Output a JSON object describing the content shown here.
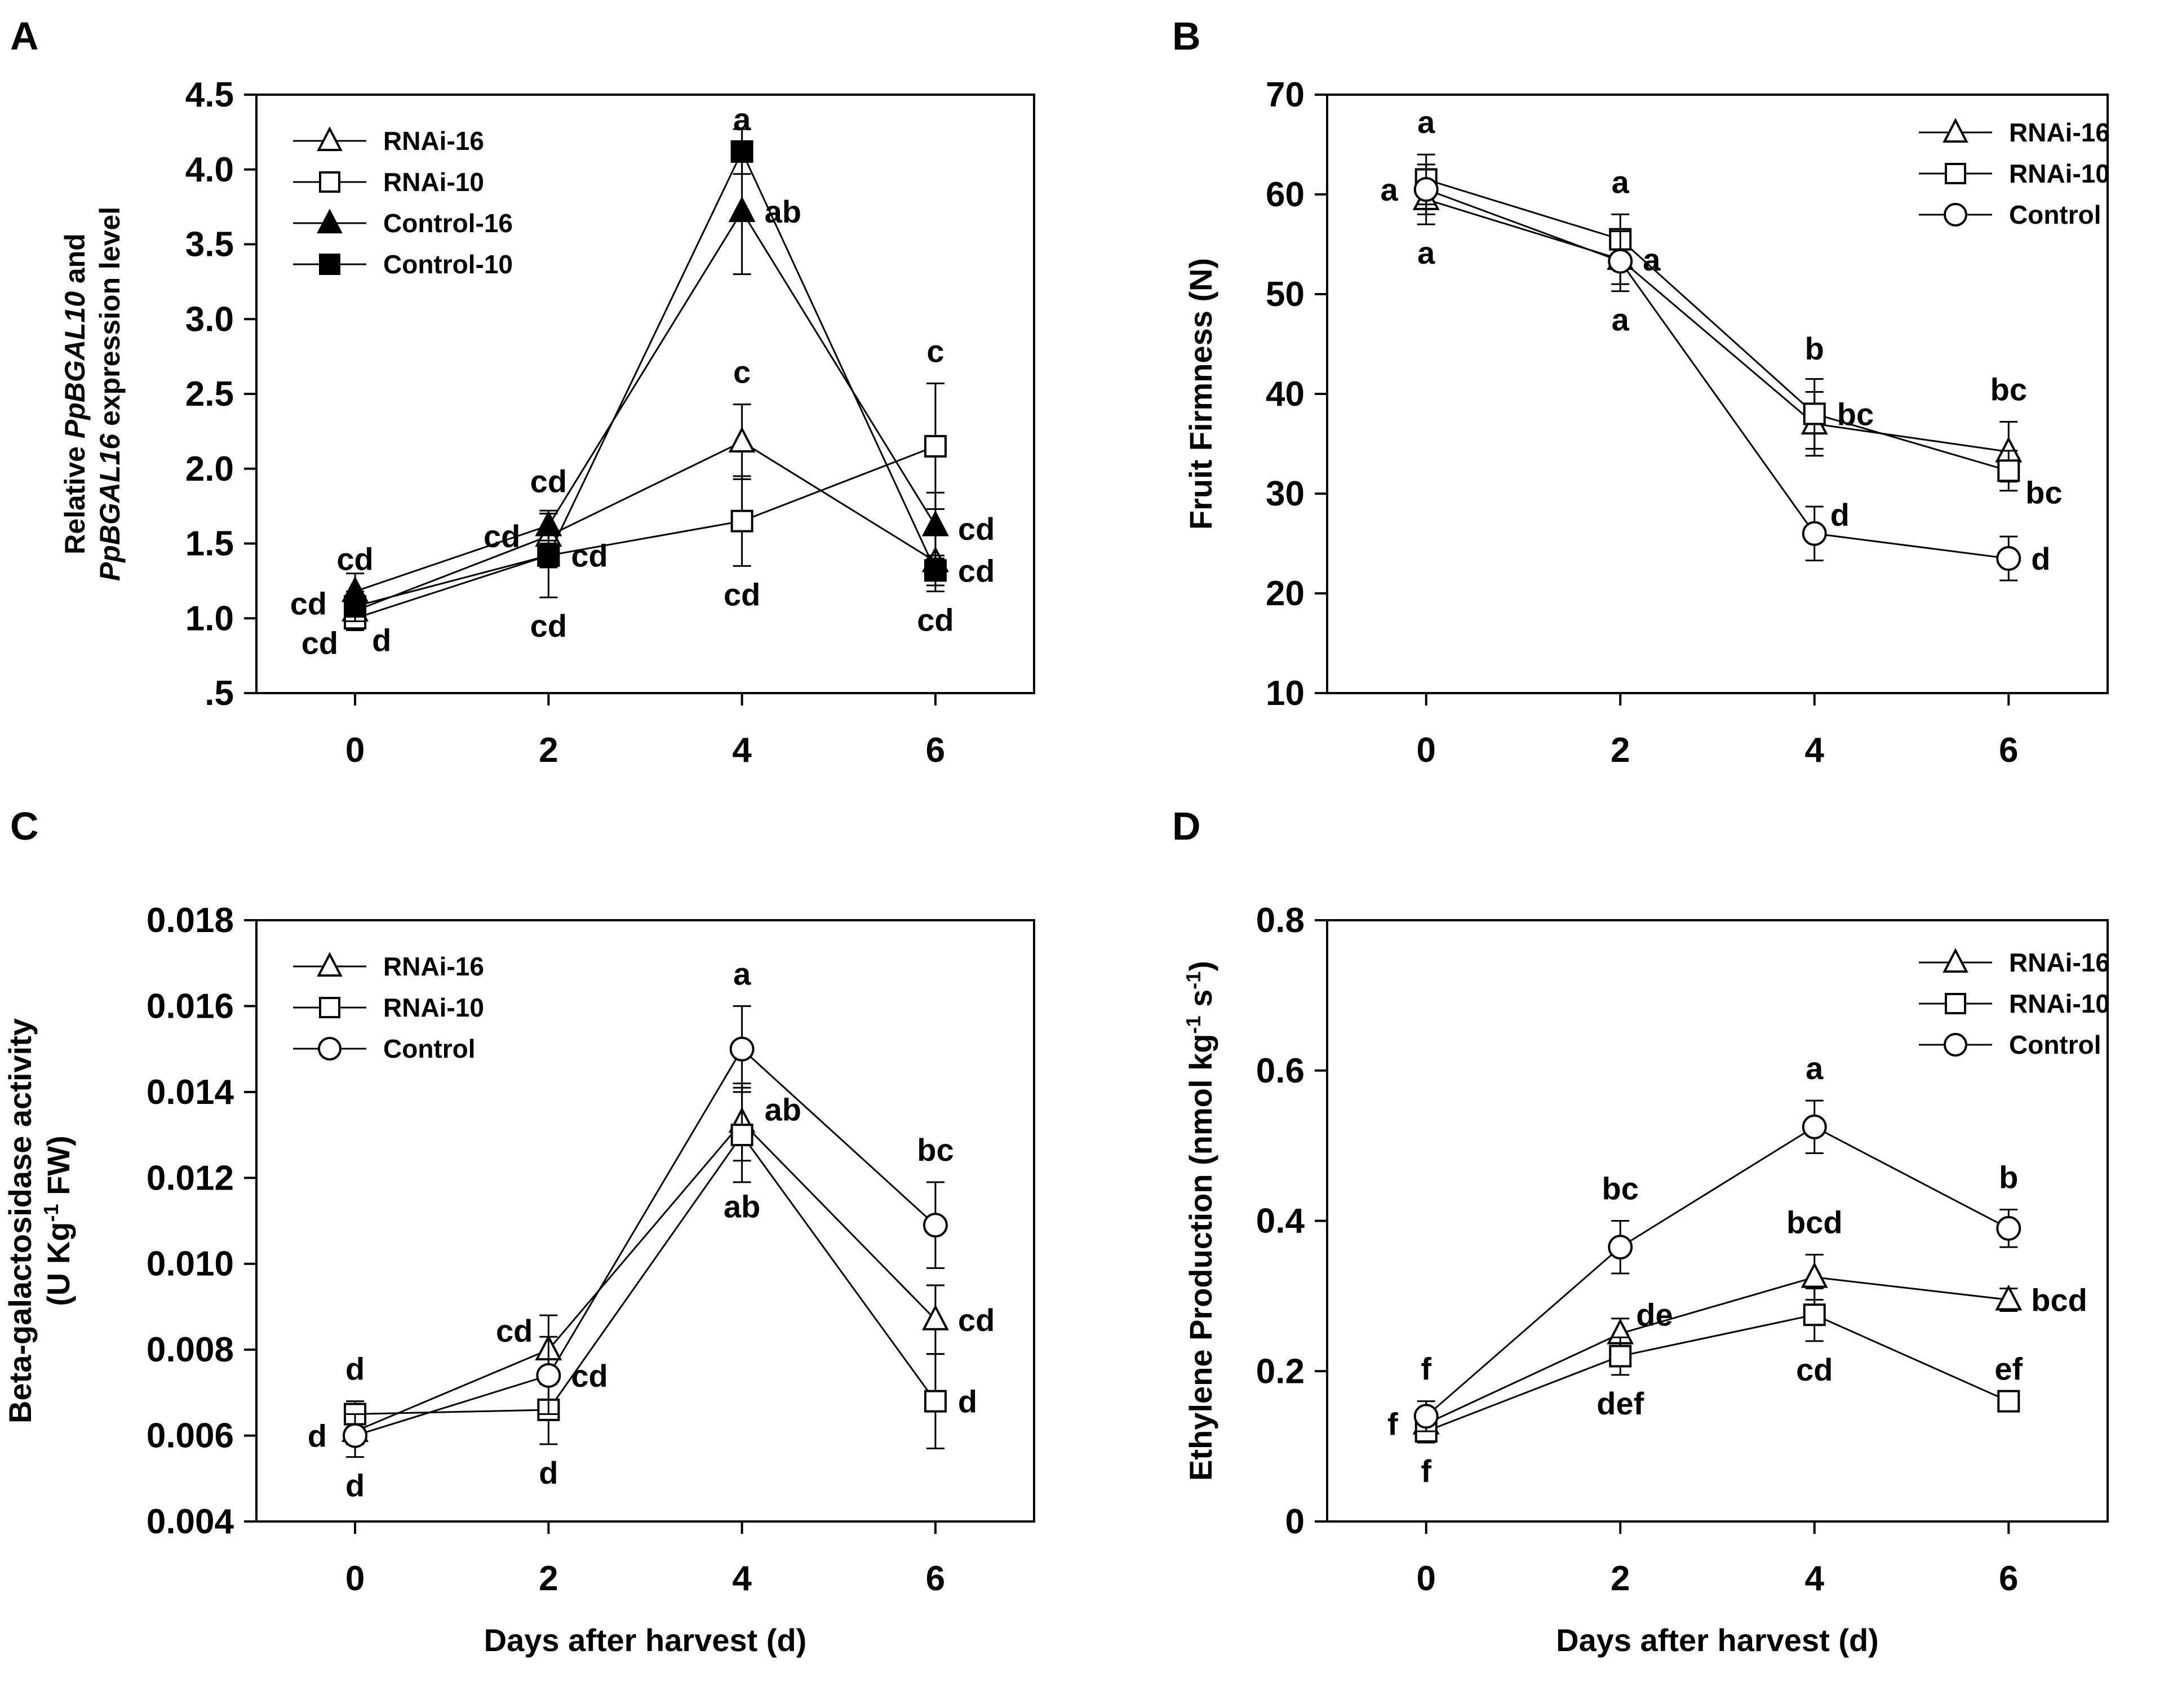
{
  "chart_data": [
    {
      "panel": "A",
      "type": "line",
      "ylabel_parts": [
        "Relative ",
        "PpBGAL10",
        " and"
      ],
      "ylabel_line2_parts": [
        "PpBGAL16",
        " expression level"
      ],
      "xlabel": "",
      "x": [
        0,
        2,
        4,
        6
      ],
      "xticks": [
        "0",
        "2",
        "4",
        "6"
      ],
      "ylim": [
        0.5,
        4.5
      ],
      "yticks": [
        0.5,
        1.0,
        1.5,
        2.0,
        2.5,
        3.0,
        3.5,
        4.0,
        4.5
      ],
      "ytick_labels": [
        ".5",
        "1.0",
        "1.5",
        "2.0",
        "2.5",
        "3.0",
        "3.5",
        "4.0",
        "4.5"
      ],
      "legend_position": "top-left",
      "series": [
        {
          "name": "RNAi-16",
          "marker": "triangle",
          "filled": false,
          "values": [
            1.05,
            1.55,
            2.18,
            1.38
          ],
          "err": [
            0.1,
            0.15,
            0.25,
            0.2
          ]
        },
        {
          "name": "RNAi-10",
          "marker": "square",
          "filled": false,
          "values": [
            1.0,
            1.42,
            1.65,
            2.15
          ],
          "err": [
            0.08,
            0.28,
            0.3,
            0.42
          ]
        },
        {
          "name": "Control-16",
          "marker": "triangle",
          "filled": true,
          "values": [
            1.18,
            1.62,
            3.72,
            1.62
          ],
          "err": [
            0.12,
            0.1,
            0.42,
            0.22
          ]
        },
        {
          "name": "Control-10",
          "marker": "square",
          "filled": true,
          "values": [
            1.08,
            1.42,
            4.12,
            1.32
          ],
          "err": [
            0.1,
            0.08,
            0.15,
            0.1
          ]
        }
      ],
      "annotations": [
        {
          "text": "cd",
          "x": 0,
          "y": 1.18,
          "side": "above"
        },
        {
          "text": "cd",
          "x": 0,
          "y": 1.1,
          "side": "left"
        },
        {
          "text": "cd",
          "x": 0,
          "y": 0.98,
          "side": "below-left"
        },
        {
          "text": "d",
          "x": 0,
          "y": 1.0,
          "side": "below-right"
        },
        {
          "text": "cd",
          "x": 2,
          "y": 1.7,
          "side": "above"
        },
        {
          "text": "cd",
          "x": 2,
          "y": 1.55,
          "side": "left"
        },
        {
          "text": "cd",
          "x": 2,
          "y": 1.42,
          "side": "right"
        },
        {
          "text": "cd",
          "x": 2,
          "y": 1.14,
          "side": "below"
        },
        {
          "text": "a",
          "x": 4,
          "y": 4.12,
          "side": "above"
        },
        {
          "text": "ab",
          "x": 4,
          "y": 3.72,
          "side": "right"
        },
        {
          "text": "c",
          "x": 4,
          "y": 2.43,
          "side": "above"
        },
        {
          "text": "cd",
          "x": 4,
          "y": 1.35,
          "side": "below"
        },
        {
          "text": "c",
          "x": 6,
          "y": 2.57,
          "side": "above"
        },
        {
          "text": "cd",
          "x": 6,
          "y": 1.6,
          "side": "right"
        },
        {
          "text": "cd",
          "x": 6,
          "y": 1.32,
          "side": "right"
        },
        {
          "text": "cd",
          "x": 6,
          "y": 1.18,
          "side": "below"
        }
      ]
    },
    {
      "panel": "B",
      "type": "line",
      "ylabel": "Fruit Firmness (N)",
      "xlabel": "",
      "x": [
        0,
        2,
        4,
        6
      ],
      "xticks": [
        "0",
        "2",
        "4",
        "6"
      ],
      "ylim": [
        10,
        70
      ],
      "yticks": [
        10,
        20,
        30,
        40,
        50,
        60,
        70
      ],
      "ytick_labels": [
        "10",
        "20",
        "30",
        "40",
        "50",
        "60",
        "70"
      ],
      "legend_position": "top-right",
      "series": [
        {
          "name": "RNAi-16",
          "marker": "triangle",
          "filled": false,
          "values": [
            59.5,
            53.5,
            37.0,
            34.2
          ],
          "err": [
            2.5,
            2.5,
            3.2,
            3.0
          ]
        },
        {
          "name": "RNAi-10",
          "marker": "square",
          "filled": false,
          "values": [
            61.5,
            55.5,
            38.0,
            32.3
          ],
          "err": [
            2.5,
            2.5,
            3.5,
            2.0
          ]
        },
        {
          "name": "Control",
          "marker": "circle",
          "filled": false,
          "values": [
            60.5,
            53.3,
            26.0,
            23.5
          ],
          "err": [
            2.5,
            3.0,
            2.7,
            2.2
          ]
        }
      ],
      "annotations": [
        {
          "text": "a",
          "x": 0,
          "y": 64.0,
          "side": "above"
        },
        {
          "text": "a",
          "x": 0,
          "y": 60.5,
          "side": "left"
        },
        {
          "text": "a",
          "x": 0,
          "y": 57.0,
          "side": "below"
        },
        {
          "text": "a",
          "x": 2,
          "y": 58.0,
          "side": "above"
        },
        {
          "text": "a",
          "x": 2,
          "y": 53.5,
          "side": "right"
        },
        {
          "text": "a",
          "x": 2,
          "y": 50.3,
          "side": "below"
        },
        {
          "text": "b",
          "x": 4,
          "y": 41.3,
          "side": "above"
        },
        {
          "text": "bc",
          "x": 4,
          "y": 38.0,
          "side": "right"
        },
        {
          "text": "d",
          "x": 4,
          "y": 26.0,
          "side": "above-right"
        },
        {
          "text": "bc",
          "x": 6,
          "y": 37.2,
          "side": "above"
        },
        {
          "text": "bc",
          "x": 6,
          "y": 32.3,
          "side": "below-right"
        },
        {
          "text": "d",
          "x": 6,
          "y": 23.5,
          "side": "right"
        }
      ]
    },
    {
      "panel": "C",
      "type": "line",
      "ylabel_line1": "Beta-galactosidase activity",
      "ylabel_line2_parts": [
        "(U Kg",
        "-1",
        " FW)"
      ],
      "xlabel": "Days after harvest (d)",
      "x": [
        0,
        2,
        4,
        6
      ],
      "xticks": [
        "0",
        "2",
        "4",
        "6"
      ],
      "ylim": [
        0.004,
        0.018
      ],
      "yticks": [
        0.004,
        0.006,
        0.008,
        0.01,
        0.012,
        0.014,
        0.016,
        0.018
      ],
      "ytick_labels": [
        "0.004",
        "0.006",
        "0.008",
        "0.010",
        "0.012",
        "0.014",
        "0.016",
        "0.018"
      ],
      "legend_position": "top-left",
      "series": [
        {
          "name": "RNAi-16",
          "marker": "triangle",
          "filled": false,
          "values": [
            0.0061,
            0.008,
            0.0133,
            0.0087
          ],
          "err": [
            0.0003,
            0.0008,
            0.0009,
            0.0008
          ]
        },
        {
          "name": "RNAi-10",
          "marker": "square",
          "filled": false,
          "values": [
            0.0065,
            0.0066,
            0.013,
            0.0068
          ],
          "err": [
            0.0003,
            0.0008,
            0.0011,
            0.0011
          ]
        },
        {
          "name": "Control",
          "marker": "circle",
          "filled": false,
          "values": [
            0.006,
            0.0074,
            0.015,
            0.0109
          ],
          "err": [
            0.0005,
            0.0009,
            0.001,
            0.001
          ]
        }
      ],
      "annotations": [
        {
          "text": "d",
          "x": 0,
          "y": 0.0068,
          "side": "above"
        },
        {
          "text": "d",
          "x": 0,
          "y": 0.006,
          "side": "left"
        },
        {
          "text": "d",
          "x": 0,
          "y": 0.0055,
          "side": "below"
        },
        {
          "text": "cd",
          "x": 2,
          "y": 0.008,
          "side": "above-left"
        },
        {
          "text": "cd",
          "x": 2,
          "y": 0.0074,
          "side": "right"
        },
        {
          "text": "d",
          "x": 2,
          "y": 0.0058,
          "side": "below"
        },
        {
          "text": "a",
          "x": 4,
          "y": 0.016,
          "side": "above"
        },
        {
          "text": "ab",
          "x": 4,
          "y": 0.0136,
          "side": "right"
        },
        {
          "text": "ab",
          "x": 4,
          "y": 0.012,
          "side": "below"
        },
        {
          "text": "bc",
          "x": 6,
          "y": 0.0119,
          "side": "above"
        },
        {
          "text": "cd",
          "x": 6,
          "y": 0.0087,
          "side": "right"
        },
        {
          "text": "d",
          "x": 6,
          "y": 0.0068,
          "side": "right"
        }
      ]
    },
    {
      "panel": "D",
      "type": "line",
      "ylabel_parts": [
        "Ethylene Production (nmol kg",
        "-1",
        " s",
        "-1",
        ")"
      ],
      "xlabel": "Days after harvest (d)",
      "x": [
        0,
        2,
        4,
        6
      ],
      "xticks": [
        "0",
        "2",
        "4",
        "6"
      ],
      "ylim": [
        0,
        0.8
      ],
      "yticks": [
        0,
        0.2,
        0.4,
        0.6,
        0.8
      ],
      "ytick_labels": [
        "0",
        "0.2",
        "0.4",
        "0.6",
        "0.8"
      ],
      "legend_position": "top-right",
      "series": [
        {
          "name": "RNAi-16",
          "marker": "triangle",
          "filled": false,
          "values": [
            0.13,
            0.25,
            0.325,
            0.295
          ],
          "err": [
            0.02,
            0.02,
            0.03,
            0.015
          ]
        },
        {
          "name": "RNAi-10",
          "marker": "square",
          "filled": false,
          "values": [
            0.12,
            0.22,
            0.275,
            0.16
          ],
          "err": [
            0.015,
            0.025,
            0.035,
            0.01
          ]
        },
        {
          "name": "Control",
          "marker": "circle",
          "filled": false,
          "values": [
            0.14,
            0.365,
            0.525,
            0.39
          ],
          "err": [
            0.02,
            0.035,
            0.035,
            0.025
          ]
        }
      ],
      "annotations": [
        {
          "text": "f",
          "x": 0,
          "y": 0.16,
          "side": "above"
        },
        {
          "text": "f",
          "x": 0,
          "y": 0.13,
          "side": "left"
        },
        {
          "text": "f",
          "x": 0,
          "y": 0.105,
          "side": "below"
        },
        {
          "text": "bc",
          "x": 2,
          "y": 0.4,
          "side": "above"
        },
        {
          "text": "de",
          "x": 2,
          "y": 0.25,
          "side": "above-right"
        },
        {
          "text": "def",
          "x": 2,
          "y": 0.195,
          "side": "below"
        },
        {
          "text": "a",
          "x": 4,
          "y": 0.56,
          "side": "above"
        },
        {
          "text": "bcd",
          "x": 4,
          "y": 0.355,
          "side": "above"
        },
        {
          "text": "cd",
          "x": 4,
          "y": 0.24,
          "side": "below"
        },
        {
          "text": "b",
          "x": 6,
          "y": 0.415,
          "side": "above"
        },
        {
          "text": "bcd",
          "x": 6,
          "y": 0.295,
          "side": "right"
        },
        {
          "text": "ef",
          "x": 6,
          "y": 0.16,
          "side": "above"
        }
      ]
    }
  ]
}
